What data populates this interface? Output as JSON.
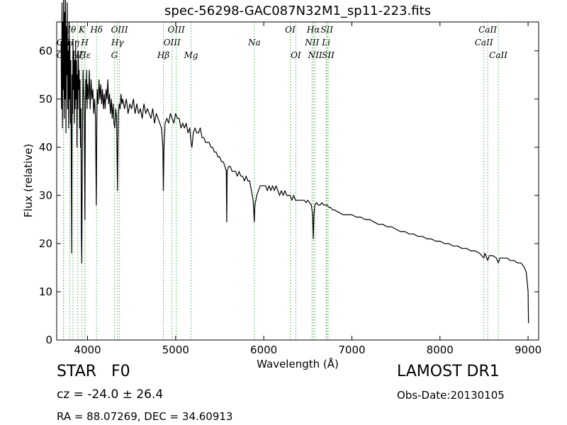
{
  "chart_data": {
    "type": "line",
    "title": "spec-56298-GAC087N32M1_sp11-223.fits",
    "xlabel": "Wavelength (Å)",
    "ylabel": "Flux (relative)",
    "xlim": [
      3650,
      9120
    ],
    "ylim": [
      0,
      66
    ],
    "xticks": [
      4000,
      5000,
      6000,
      7000,
      8000,
      9000
    ],
    "yticks": [
      0,
      10,
      20,
      30,
      40,
      50,
      60
    ],
    "grid": false,
    "series": [
      {
        "color": "#000000",
        "points": [
          [
            3700,
            62
          ],
          [
            3705,
            48
          ],
          [
            3710,
            70
          ],
          [
            3715,
            44
          ],
          [
            3720,
            66
          ],
          [
            3725,
            52
          ],
          [
            3730,
            75
          ],
          [
            3735,
            46
          ],
          [
            3740,
            68
          ],
          [
            3745,
            50
          ],
          [
            3750,
            72
          ],
          [
            3755,
            43
          ],
          [
            3760,
            65
          ],
          [
            3765,
            55
          ],
          [
            3770,
            70
          ],
          [
            3775,
            48
          ],
          [
            3780,
            60
          ],
          [
            3785,
            44
          ],
          [
            3790,
            66
          ],
          [
            3795,
            50
          ],
          [
            3800,
            62
          ],
          [
            3805,
            45
          ],
          [
            3810,
            58
          ],
          [
            3815,
            40
          ],
          [
            3820,
            18
          ],
          [
            3825,
            55
          ],
          [
            3830,
            47
          ],
          [
            3835,
            62
          ],
          [
            3840,
            52
          ],
          [
            3845,
            60
          ],
          [
            3850,
            45
          ],
          [
            3855,
            58
          ],
          [
            3860,
            48
          ],
          [
            3865,
            62
          ],
          [
            3870,
            50
          ],
          [
            3875,
            58
          ],
          [
            3880,
            40
          ],
          [
            3885,
            55
          ],
          [
            3890,
            48
          ],
          [
            3895,
            60
          ],
          [
            3900,
            52
          ],
          [
            3905,
            56
          ],
          [
            3910,
            44
          ],
          [
            3915,
            54
          ],
          [
            3920,
            40
          ],
          [
            3925,
            48
          ],
          [
            3930,
            22
          ],
          [
            3935,
            16
          ],
          [
            3940,
            38
          ],
          [
            3945,
            50
          ],
          [
            3950,
            56
          ],
          [
            3955,
            52
          ],
          [
            3960,
            50
          ],
          [
            3965,
            40
          ],
          [
            3970,
            25
          ],
          [
            3975,
            46
          ],
          [
            3980,
            54
          ],
          [
            3985,
            50
          ],
          [
            3990,
            56
          ],
          [
            3995,
            48
          ],
          [
            4000,
            53
          ],
          [
            4010,
            50
          ],
          [
            4020,
            56
          ],
          [
            4030,
            48
          ],
          [
            4040,
            54
          ],
          [
            4050,
            50
          ],
          [
            4060,
            52
          ],
          [
            4070,
            47
          ],
          [
            4080,
            50
          ],
          [
            4090,
            46
          ],
          [
            4100,
            28
          ],
          [
            4105,
            45
          ],
          [
            4110,
            52
          ],
          [
            4120,
            49
          ],
          [
            4130,
            54
          ],
          [
            4140,
            50
          ],
          [
            4150,
            53
          ],
          [
            4160,
            49
          ],
          [
            4170,
            52
          ],
          [
            4180,
            48
          ],
          [
            4190,
            51
          ],
          [
            4200,
            48
          ],
          [
            4210,
            52
          ],
          [
            4220,
            50
          ],
          [
            4230,
            54
          ],
          [
            4240,
            49
          ],
          [
            4250,
            51
          ],
          [
            4260,
            47
          ],
          [
            4270,
            50
          ],
          [
            4280,
            46
          ],
          [
            4290,
            49
          ],
          [
            4300,
            45
          ],
          [
            4310,
            44
          ],
          [
            4320,
            48
          ],
          [
            4330,
            46
          ],
          [
            4340,
            31
          ],
          [
            4345,
            40
          ],
          [
            4350,
            47
          ],
          [
            4360,
            49
          ],
          [
            4370,
            48
          ],
          [
            4380,
            51
          ],
          [
            4390,
            49
          ],
          [
            4400,
            50
          ],
          [
            4420,
            48
          ],
          [
            4440,
            50
          ],
          [
            4460,
            47
          ],
          [
            4480,
            49
          ],
          [
            4500,
            48
          ],
          [
            4520,
            50
          ],
          [
            4540,
            47
          ],
          [
            4560,
            49
          ],
          [
            4580,
            47
          ],
          [
            4600,
            48
          ],
          [
            4620,
            46
          ],
          [
            4640,
            49
          ],
          [
            4660,
            47
          ],
          [
            4680,
            48
          ],
          [
            4700,
            47
          ],
          [
            4720,
            46
          ],
          [
            4740,
            48
          ],
          [
            4760,
            45
          ],
          [
            4780,
            47
          ],
          [
            4800,
            46
          ],
          [
            4820,
            45
          ],
          [
            4840,
            44
          ],
          [
            4855,
            40
          ],
          [
            4861,
            31
          ],
          [
            4868,
            40
          ],
          [
            4880,
            45
          ],
          [
            4900,
            46
          ],
          [
            4920,
            45
          ],
          [
            4940,
            47
          ],
          [
            4960,
            46
          ],
          [
            4980,
            45
          ],
          [
            5000,
            47
          ],
          [
            5020,
            46
          ],
          [
            5040,
            46
          ],
          [
            5060,
            44
          ],
          [
            5080,
            45
          ],
          [
            5100,
            44
          ],
          [
            5120,
            45
          ],
          [
            5140,
            43
          ],
          [
            5160,
            44
          ],
          [
            5175,
            41
          ],
          [
            5185,
            40
          ],
          [
            5200,
            43
          ],
          [
            5220,
            44
          ],
          [
            5240,
            43
          ],
          [
            5260,
            43
          ],
          [
            5280,
            44
          ],
          [
            5300,
            42
          ],
          [
            5320,
            42
          ],
          [
            5340,
            41
          ],
          [
            5360,
            41
          ],
          [
            5380,
            41
          ],
          [
            5400,
            40
          ],
          [
            5420,
            40
          ],
          [
            5440,
            39
          ],
          [
            5460,
            39
          ],
          [
            5480,
            38
          ],
          [
            5500,
            38
          ],
          [
            5520,
            37
          ],
          [
            5540,
            37
          ],
          [
            5560,
            36
          ],
          [
            5575,
            35
          ],
          [
            5580,
            24.5
          ],
          [
            5585,
            35
          ],
          [
            5600,
            36
          ],
          [
            5620,
            36
          ],
          [
            5640,
            35
          ],
          [
            5660,
            35
          ],
          [
            5680,
            35
          ],
          [
            5700,
            34
          ],
          [
            5720,
            35
          ],
          [
            5740,
            34
          ],
          [
            5760,
            34
          ],
          [
            5780,
            33
          ],
          [
            5800,
            34
          ],
          [
            5820,
            33
          ],
          [
            5840,
            33
          ],
          [
            5860,
            31
          ],
          [
            5880,
            29
          ],
          [
            5893,
            24.5
          ],
          [
            5900,
            28
          ],
          [
            5920,
            30
          ],
          [
            5940,
            31
          ],
          [
            5960,
            32
          ],
          [
            5980,
            32
          ],
          [
            6000,
            32
          ],
          [
            6020,
            32
          ],
          [
            6040,
            31
          ],
          [
            6060,
            32
          ],
          [
            6080,
            31
          ],
          [
            6100,
            32
          ],
          [
            6120,
            31
          ],
          [
            6140,
            32
          ],
          [
            6160,
            31
          ],
          [
            6180,
            30
          ],
          [
            6200,
            31
          ],
          [
            6220,
            30
          ],
          [
            6240,
            31
          ],
          [
            6260,
            30
          ],
          [
            6280,
            30
          ],
          [
            6300,
            30
          ],
          [
            6320,
            29
          ],
          [
            6340,
            30
          ],
          [
            6360,
            29
          ],
          [
            6380,
            29
          ],
          [
            6400,
            29
          ],
          [
            6420,
            29
          ],
          [
            6440,
            29
          ],
          [
            6460,
            29
          ],
          [
            6480,
            28.5
          ],
          [
            6500,
            29
          ],
          [
            6520,
            28.5
          ],
          [
            6540,
            28
          ],
          [
            6555,
            26
          ],
          [
            6563,
            21
          ],
          [
            6570,
            26
          ],
          [
            6580,
            28
          ],
          [
            6600,
            28.5
          ],
          [
            6620,
            28
          ],
          [
            6640,
            28
          ],
          [
            6660,
            28.5
          ],
          [
            6680,
            28
          ],
          [
            6700,
            28
          ],
          [
            6720,
            28
          ],
          [
            6740,
            27.5
          ],
          [
            6760,
            27.5
          ],
          [
            6780,
            27
          ],
          [
            6800,
            27
          ],
          [
            6850,
            26.5
          ],
          [
            6900,
            26
          ],
          [
            6950,
            26
          ],
          [
            7000,
            26
          ],
          [
            7050,
            25.5
          ],
          [
            7100,
            25.5
          ],
          [
            7150,
            25
          ],
          [
            7200,
            25
          ],
          [
            7250,
            24.5
          ],
          [
            7300,
            24
          ],
          [
            7350,
            24
          ],
          [
            7400,
            23.5
          ],
          [
            7450,
            23.5
          ],
          [
            7500,
            23
          ],
          [
            7550,
            22.5
          ],
          [
            7600,
            22.5
          ],
          [
            7650,
            22
          ],
          [
            7700,
            22
          ],
          [
            7750,
            21.5
          ],
          [
            7800,
            21.5
          ],
          [
            7850,
            21
          ],
          [
            7900,
            21
          ],
          [
            7950,
            20.5
          ],
          [
            8000,
            20.5
          ],
          [
            8050,
            20
          ],
          [
            8100,
            20
          ],
          [
            8150,
            19.5
          ],
          [
            8200,
            19.5
          ],
          [
            8250,
            19
          ],
          [
            8300,
            19
          ],
          [
            8350,
            18.5
          ],
          [
            8400,
            18.5
          ],
          [
            8450,
            18
          ],
          [
            8498,
            17
          ],
          [
            8510,
            18
          ],
          [
            8542,
            16.5
          ],
          [
            8560,
            17.5
          ],
          [
            8600,
            17.5
          ],
          [
            8640,
            17
          ],
          [
            8662,
            16
          ],
          [
            8680,
            17
          ],
          [
            8720,
            17
          ],
          [
            8760,
            17
          ],
          [
            8800,
            16.5
          ],
          [
            8840,
            16.5
          ],
          [
            8880,
            16
          ],
          [
            8920,
            16
          ],
          [
            8960,
            15
          ],
          [
            8980,
            14
          ],
          [
            9000,
            10
          ],
          [
            9005,
            3.5
          ]
        ]
      }
    ],
    "lines": [
      {
        "label": "OII",
        "wavelength": 3727,
        "row": 1
      },
      {
        "label": "OII",
        "wavelength": 3729,
        "row": 2
      },
      {
        "label": "Hθ",
        "wavelength": 3798,
        "row": 0
      },
      {
        "label": "Hη",
        "wavelength": 3835,
        "row": 1
      },
      {
        "label": "Hζ",
        "wavelength": 3889,
        "row": 2
      },
      {
        "label": "K",
        "wavelength": 3934,
        "row": 0
      },
      {
        "label": "H",
        "wavelength": 3969,
        "row": 1
      },
      {
        "label": "Hε",
        "wavelength": 3970,
        "row": 2
      },
      {
        "label": "Hδ",
        "wavelength": 4102,
        "row": 0
      },
      {
        "label": "Hγ",
        "wavelength": 4340,
        "row": 1
      },
      {
        "label": "OIII",
        "wavelength": 4363,
        "row": 0
      },
      {
        "label": "G",
        "wavelength": 4305,
        "row": 2
      },
      {
        "label": "Hβ",
        "wavelength": 4861,
        "row": 2
      },
      {
        "label": "OIII",
        "wavelength": 4959,
        "row": 1
      },
      {
        "label": "OIII",
        "wavelength": 5007,
        "row": 0
      },
      {
        "label": "Mg",
        "wavelength": 5175,
        "row": 2
      },
      {
        "label": "Na",
        "wavelength": 5893,
        "row": 1
      },
      {
        "label": "OI",
        "wavelength": 6300,
        "row": 0
      },
      {
        "label": "OI",
        "wavelength": 6364,
        "row": 2
      },
      {
        "label": "NII",
        "wavelength": 6548,
        "row": 1
      },
      {
        "label": "Hα",
        "wavelength": 6563,
        "row": 0
      },
      {
        "label": "NII",
        "wavelength": 6583,
        "row": 2
      },
      {
        "label": "Li",
        "wavelength": 6708,
        "row": 1
      },
      {
        "label": "SII",
        "wavelength": 6716,
        "row": 0
      },
      {
        "label": "SII",
        "wavelength": 6731,
        "row": 2
      },
      {
        "label": "CaII",
        "wavelength": 8498,
        "row": 1
      },
      {
        "label": "CaII",
        "wavelength": 8542,
        "row": 0
      },
      {
        "label": "CaII",
        "wavelength": 8662,
        "row": 2
      }
    ]
  },
  "colors": {
    "spectrum": "#000000",
    "line_marker": "#4caf50",
    "axis": "#000000"
  },
  "footer": {
    "classification": "STAR   F0",
    "redshift": "cz = -24.0 ± 26.4",
    "coordinates": "RA = 88.07269, DEC = 34.60913",
    "survey": "LAMOST DR1",
    "obs_date": "Obs-Date:20130105"
  }
}
